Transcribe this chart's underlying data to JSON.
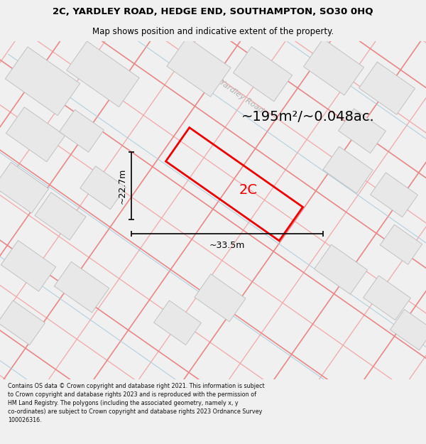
{
  "title_line1": "2C, YARDLEY ROAD, HEDGE END, SOUTHAMPTON, SO30 0HQ",
  "title_line2": "Map shows position and indicative extent of the property.",
  "footer_text": "Contains OS data © Crown copyright and database right 2021. This information is subject to Crown copyright and database rights 2023 and is reproduced with the permission of HM Land Registry. The polygons (including the associated geometry, namely x, y co-ordinates) are subject to Crown copyright and database rights 2023 Ordnance Survey 100026316.",
  "area_label": "~195m²/~0.048ac.",
  "width_label": "~33.5m",
  "height_label": "~22.7m",
  "plot_label": "2C",
  "road_label": "Yardley Road",
  "bg_color": "#f0f0f0",
  "map_bg": "#ffffff",
  "building_fill": "#e8e8e8",
  "building_edge": "#bbbbbb",
  "parcel_line_color": "#f0a8a8",
  "road_boundary_color": "#e88888",
  "blue_line_color": "#aaccdd",
  "plot_color": "#ee0000",
  "dim_line_color": "#111111",
  "road_label_color": "#b0b0b0",
  "title_color": "#000000",
  "footer_color": "#111111",
  "title_fontsize": 9.5,
  "subtitle_fontsize": 8.5,
  "area_fontsize": 14,
  "dim_fontsize": 9,
  "plot_label_fontsize": 14,
  "road_label_fontsize": 8,
  "footer_fontsize": 5.8
}
